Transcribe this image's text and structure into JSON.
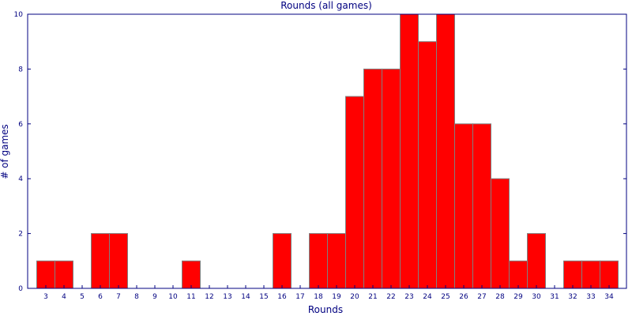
{
  "chart_data": {
    "type": "bar",
    "title": "Rounds (all games)",
    "xlabel": "Rounds",
    "ylabel": "# of games",
    "categories": [
      "3",
      "4",
      "5",
      "6",
      "7",
      "8",
      "9",
      "10",
      "11",
      "12",
      "13",
      "14",
      "15",
      "16",
      "17",
      "18",
      "19",
      "20",
      "21",
      "22",
      "23",
      "24",
      "25",
      "26",
      "27",
      "28",
      "29",
      "30",
      "31",
      "32",
      "33",
      "34"
    ],
    "values": [
      1,
      1,
      0,
      2,
      2,
      0,
      0,
      0,
      1,
      0,
      0,
      0,
      0,
      2,
      0,
      2,
      2,
      7,
      8,
      8,
      10,
      9,
      10,
      6,
      6,
      4,
      1,
      2,
      0,
      1,
      1,
      1
    ],
    "ylim": [
      0,
      10
    ],
    "yticks": [
      0,
      2,
      4,
      6,
      8,
      10
    ],
    "grid": false,
    "colors": {
      "bar_fill": "#ff0000",
      "bar_stroke": "#808080",
      "axis": "#000080",
      "text": "#000080"
    }
  }
}
